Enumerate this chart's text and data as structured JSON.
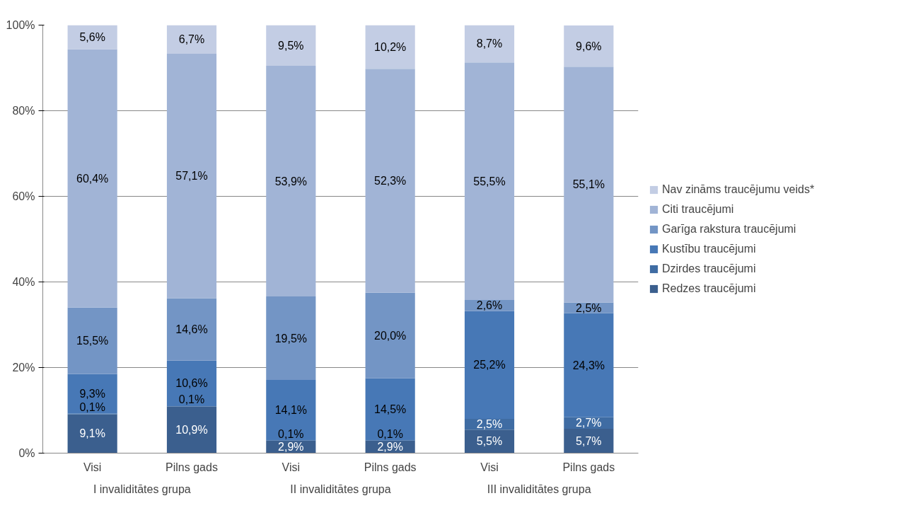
{
  "chart_data": {
    "type": "bar",
    "stacked": true,
    "categories": [
      "Visi",
      "Pilns gads",
      "Visi",
      "Pilns gads",
      "Visi",
      "Pilns gads"
    ],
    "annotations": [
      "I invaliditātes grupa",
      "II invaliditātes grupa",
      "III invaliditātes grupa"
    ],
    "series": [
      {
        "name": "Redzes traucējumi",
        "color": "#3b5f8e",
        "values": [
          9.1,
          10.9,
          2.9,
          2.9,
          5.5,
          5.7
        ],
        "value_labels": [
          "9,1%",
          "10,9%",
          "2,9%",
          "2,9%",
          "5,5%",
          "5,7%"
        ]
      },
      {
        "name": "Dzirdes traucējumi",
        "color": "#3f6ca3",
        "values": [
          0.1,
          0.1,
          0.1,
          0.1,
          2.5,
          2.7
        ],
        "value_labels": [
          "0,1%",
          "0,1%",
          "0,1%",
          "0,1%",
          "2,5%",
          "2,7%"
        ]
      },
      {
        "name": "Kustību traucējumi",
        "color": "#4778b6",
        "values": [
          9.3,
          10.6,
          14.1,
          14.5,
          25.2,
          24.3
        ],
        "value_labels": [
          "9,3%",
          "10,6%",
          "14,1%",
          "14,5%",
          "25,2%",
          "24,3%"
        ]
      },
      {
        "name": "Garīga rakstura traucējumi",
        "color": "#7395c5",
        "values": [
          15.5,
          14.6,
          19.5,
          20.0,
          2.6,
          2.5
        ],
        "value_labels": [
          "15,5%",
          "14,6%",
          "19,5%",
          "20,0%",
          "2,6%",
          "2,5%"
        ]
      },
      {
        "name": "Citi traucējumi",
        "color": "#a1b4d6",
        "values": [
          60.4,
          57.1,
          53.9,
          52.3,
          55.5,
          55.1
        ],
        "value_labels": [
          "60,4%",
          "57,1%",
          "53,9%",
          "52,3%",
          "55,5%",
          "55,1%"
        ]
      },
      {
        "name": "Nav zināms traucējumu veids*",
        "color": "#c3cde4",
        "values": [
          5.6,
          6.7,
          9.5,
          10.2,
          8.7,
          9.6
        ],
        "value_labels": [
          "5,6%",
          "6,7%",
          "9,5%",
          "10,2%",
          "8,7%",
          "9,6%"
        ]
      }
    ],
    "ylim": [
      0,
      100
    ],
    "yticks": [
      {
        "value": 0,
        "label": "0%"
      },
      {
        "value": 20,
        "label": "20%"
      },
      {
        "value": 40,
        "label": "40%"
      },
      {
        "value": 60,
        "label": "60%"
      },
      {
        "value": 80,
        "label": "80%"
      },
      {
        "value": 100,
        "label": "100%"
      }
    ],
    "grid": "y",
    "legend": "right"
  }
}
